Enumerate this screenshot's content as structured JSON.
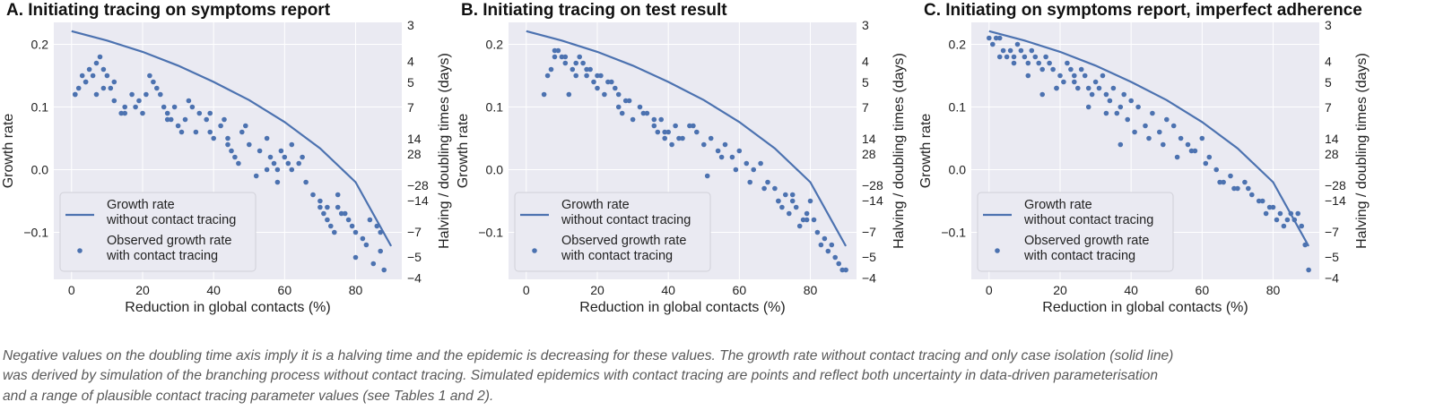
{
  "chart_data": [
    {
      "type": "scatter",
      "title": "A. Initiating tracing on symptoms report",
      "xlabel": "Reduction in global contacts (%)",
      "ylabel": "Growth rate",
      "y2label": "Halving / doubling times (days)",
      "xlim": [
        -5,
        93
      ],
      "ylim": [
        -0.175,
        0.235
      ],
      "xticks": [
        0,
        20,
        40,
        60,
        80
      ],
      "yticks": [
        -0.1,
        0.0,
        0.1,
        0.2
      ],
      "ytick_labels": [
        "−0.1",
        "0.0",
        "0.1",
        "0.2"
      ],
      "y2ticks": [
        {
          "label": "3",
          "r": 0.231
        },
        {
          "label": "4",
          "r": 0.173
        },
        {
          "label": "5",
          "r": 0.139
        },
        {
          "label": "7",
          "r": 0.099
        },
        {
          "label": "14",
          "r": 0.0495
        },
        {
          "label": "28",
          "r": 0.0248
        },
        {
          "label": "−28",
          "r": -0.0248
        },
        {
          "label": "−14",
          "r": -0.0495
        },
        {
          "label": "−7",
          "r": -0.099
        },
        {
          "label": "−5",
          "r": -0.139
        },
        {
          "label": "−4",
          "r": -0.173
        }
      ],
      "grid": true,
      "legend_position": "lower-left",
      "series": [
        {
          "name": "Growth rate\nwithout contact tracing",
          "kind": "line",
          "x": [
            0,
            10,
            20,
            30,
            40,
            50,
            60,
            70,
            80,
            90
          ],
          "y": [
            0.221,
            0.206,
            0.188,
            0.166,
            0.14,
            0.111,
            0.076,
            0.034,
            -0.02,
            -0.122
          ]
        },
        {
          "name": "Observed growth rate\nwith contact tracing",
          "kind": "scatter",
          "x": [
            1,
            2,
            3,
            4,
            5,
            6,
            7,
            8,
            9,
            10,
            11,
            12,
            14,
            15,
            17,
            19,
            20,
            22,
            24,
            25,
            26,
            27,
            28,
            30,
            31,
            32,
            34,
            36,
            38,
            39,
            40,
            42,
            43,
            44,
            45,
            46,
            47,
            48,
            50,
            53,
            55,
            56,
            57,
            58,
            59,
            60,
            61,
            62,
            64,
            66,
            68,
            70,
            71,
            72,
            73,
            74,
            75,
            76,
            78,
            79,
            80,
            82,
            84,
            86,
            87,
            88,
            1,
            4,
            7,
            9,
            12,
            15,
            18,
            21,
            23,
            27,
            29,
            33,
            35,
            39,
            44,
            49,
            52,
            55,
            58,
            62,
            65,
            70,
            72,
            75,
            77,
            80,
            83,
            85,
            87
          ],
          "y": [
            0.12,
            0.13,
            0.15,
            0.14,
            0.16,
            0.15,
            0.17,
            0.18,
            0.16,
            0.15,
            0.13,
            0.14,
            0.09,
            0.1,
            0.12,
            0.11,
            0.09,
            0.15,
            0.13,
            0.12,
            0.1,
            0.09,
            0.08,
            0.07,
            0.06,
            0.08,
            0.1,
            0.09,
            0.08,
            0.06,
            0.05,
            0.07,
            0.08,
            0.05,
            0.03,
            0.02,
            0.01,
            0.06,
            0.04,
            0.03,
            0.05,
            0.02,
            0.01,
            0.0,
            0.03,
            0.02,
            0.01,
            0.0,
            0.01,
            -0.02,
            -0.04,
            -0.06,
            -0.07,
            -0.08,
            -0.09,
            -0.1,
            -0.06,
            -0.07,
            -0.08,
            -0.09,
            -0.1,
            -0.11,
            -0.08,
            -0.09,
            -0.1,
            -0.16,
            0.12,
            0.14,
            0.12,
            0.13,
            0.11,
            0.09,
            0.1,
            0.12,
            0.14,
            0.08,
            0.1,
            0.11,
            0.06,
            0.09,
            0.04,
            0.07,
            -0.01,
            0.0,
            -0.02,
            0.04,
            0.02,
            -0.05,
            -0.06,
            -0.04,
            -0.07,
            -0.14,
            -0.12,
            -0.15,
            -0.13
          ]
        }
      ]
    },
    {
      "type": "scatter",
      "title": "B. Initiating tracing on test result",
      "xlabel": "Reduction in global contacts (%)",
      "ylabel": "Growth rate",
      "y2label": "Halving / doubling times (days)",
      "xlim": [
        -5,
        93
      ],
      "ylim": [
        -0.175,
        0.235
      ],
      "xticks": [
        0,
        20,
        40,
        60,
        80
      ],
      "yticks": [
        -0.1,
        0.0,
        0.1,
        0.2
      ],
      "ytick_labels": [
        "−0.1",
        "0.0",
        "0.1",
        "0.2"
      ],
      "y2ticks": [
        {
          "label": "3",
          "r": 0.231
        },
        {
          "label": "4",
          "r": 0.173
        },
        {
          "label": "5",
          "r": 0.139
        },
        {
          "label": "7",
          "r": 0.099
        },
        {
          "label": "14",
          "r": 0.0495
        },
        {
          "label": "28",
          "r": 0.0248
        },
        {
          "label": "−28",
          "r": -0.0248
        },
        {
          "label": "−14",
          "r": -0.0495
        },
        {
          "label": "−7",
          "r": -0.099
        },
        {
          "label": "−5",
          "r": -0.139
        },
        {
          "label": "−4",
          "r": -0.173
        }
      ],
      "grid": true,
      "legend_position": "lower-left",
      "series": [
        {
          "name": "Growth rate\nwithout contact tracing",
          "kind": "line",
          "x": [
            0,
            10,
            20,
            30,
            40,
            50,
            60,
            70,
            80,
            90
          ],
          "y": [
            0.221,
            0.206,
            0.188,
            0.166,
            0.14,
            0.111,
            0.076,
            0.034,
            -0.02,
            -0.122
          ]
        },
        {
          "name": "Observed growth rate\nwith contact tracing",
          "kind": "scatter",
          "x": [
            5,
            6,
            7,
            8,
            9,
            10,
            11,
            12,
            13,
            14,
            15,
            16,
            17,
            18,
            19,
            20,
            21,
            22,
            24,
            25,
            26,
            27,
            28,
            30,
            32,
            34,
            36,
            37,
            38,
            39,
            40,
            41,
            42,
            44,
            46,
            48,
            50,
            52,
            54,
            56,
            58,
            60,
            62,
            64,
            66,
            68,
            70,
            71,
            72,
            73,
            74,
            75,
            76,
            77,
            78,
            79,
            80,
            81,
            82,
            83,
            84,
            85,
            86,
            87,
            88,
            89,
            90,
            8,
            11,
            14,
            17,
            20,
            23,
            26,
            29,
            33,
            36,
            39,
            43,
            47,
            51,
            55,
            59,
            63,
            67,
            71,
            75,
            79
          ],
          "y": [
            0.12,
            0.15,
            0.16,
            0.18,
            0.19,
            0.18,
            0.17,
            0.12,
            0.16,
            0.17,
            0.18,
            0.17,
            0.15,
            0.16,
            0.14,
            0.13,
            0.15,
            0.12,
            0.14,
            0.13,
            0.1,
            0.09,
            0.11,
            0.08,
            0.1,
            0.09,
            0.07,
            0.06,
            0.08,
            0.05,
            0.06,
            0.04,
            0.07,
            0.05,
            0.07,
            0.06,
            0.04,
            0.05,
            0.03,
            0.04,
            0.02,
            0.03,
            0.01,
            0.0,
            0.01,
            -0.02,
            -0.03,
            -0.05,
            -0.06,
            -0.04,
            -0.07,
            -0.05,
            -0.06,
            -0.09,
            -0.08,
            -0.07,
            -0.05,
            -0.08,
            -0.1,
            -0.12,
            -0.11,
            -0.13,
            -0.12,
            -0.14,
            -0.15,
            -0.16,
            -0.16,
            0.19,
            0.18,
            0.15,
            0.16,
            0.15,
            0.14,
            0.12,
            0.11,
            0.09,
            0.08,
            0.06,
            0.05,
            0.07,
            -0.01,
            0.02,
            0.0,
            -0.02,
            -0.03,
            -0.05,
            -0.04,
            -0.08
          ]
        }
      ]
    },
    {
      "type": "scatter",
      "title": "C. Initiating on symptoms report, imperfect adherence",
      "xlabel": "Reduction in global contacts (%)",
      "ylabel": "Growth rate",
      "y2label": "Halving / doubling times (days)",
      "xlim": [
        -5,
        93
      ],
      "ylim": [
        -0.175,
        0.235
      ],
      "xticks": [
        0,
        20,
        40,
        60,
        80
      ],
      "yticks": [
        -0.1,
        0.0,
        0.1,
        0.2
      ],
      "ytick_labels": [
        "−0.1",
        "0.0",
        "0.1",
        "0.2"
      ],
      "y2ticks": [
        {
          "label": "3",
          "r": 0.231
        },
        {
          "label": "4",
          "r": 0.173
        },
        {
          "label": "5",
          "r": 0.139
        },
        {
          "label": "7",
          "r": 0.099
        },
        {
          "label": "14",
          "r": 0.0495
        },
        {
          "label": "28",
          "r": 0.0248
        },
        {
          "label": "−28",
          "r": -0.0248
        },
        {
          "label": "−14",
          "r": -0.0495
        },
        {
          "label": "−7",
          "r": -0.099
        },
        {
          "label": "−5",
          "r": -0.139
        },
        {
          "label": "−4",
          "r": -0.173
        }
      ],
      "grid": true,
      "legend_position": "lower-left",
      "series": [
        {
          "name": "Growth rate\nwithout contact tracing",
          "kind": "line",
          "x": [
            0,
            10,
            20,
            30,
            40,
            50,
            60,
            70,
            80,
            90
          ],
          "y": [
            0.221,
            0.206,
            0.188,
            0.166,
            0.14,
            0.111,
            0.076,
            0.034,
            -0.02,
            -0.122
          ]
        },
        {
          "name": "Observed growth rate\nwith contact tracing",
          "kind": "scatter",
          "x": [
            0,
            1,
            2,
            3,
            4,
            5,
            6,
            7,
            8,
            9,
            10,
            11,
            12,
            13,
            14,
            15,
            16,
            17,
            18,
            19,
            20,
            21,
            22,
            23,
            24,
            25,
            26,
            27,
            28,
            29,
            30,
            31,
            32,
            33,
            34,
            35,
            36,
            37,
            38,
            39,
            40,
            42,
            44,
            46,
            48,
            50,
            52,
            54,
            56,
            58,
            60,
            62,
            64,
            66,
            68,
            70,
            72,
            74,
            76,
            78,
            80,
            81,
            82,
            83,
            84,
            85,
            86,
            87,
            88,
            89,
            90,
            3,
            7,
            11,
            15,
            19,
            24,
            28,
            33,
            37,
            41,
            45,
            49,
            53,
            57,
            61,
            65,
            69,
            73,
            77,
            79
          ],
          "y": [
            0.21,
            0.2,
            0.21,
            0.21,
            0.19,
            0.18,
            0.19,
            0.18,
            0.2,
            0.19,
            0.18,
            0.17,
            0.19,
            0.18,
            0.17,
            0.16,
            0.18,
            0.17,
            0.16,
            0.13,
            0.15,
            0.14,
            0.17,
            0.16,
            0.14,
            0.13,
            0.16,
            0.15,
            0.13,
            0.12,
            0.14,
            0.13,
            0.15,
            0.12,
            0.11,
            0.13,
            0.09,
            0.1,
            0.12,
            0.08,
            0.11,
            0.1,
            0.07,
            0.09,
            0.06,
            0.08,
            0.07,
            0.05,
            0.04,
            0.03,
            0.05,
            0.02,
            0.0,
            -0.02,
            -0.01,
            -0.03,
            -0.02,
            -0.04,
            -0.05,
            -0.07,
            -0.06,
            -0.08,
            -0.07,
            -0.09,
            -0.08,
            -0.07,
            -0.08,
            -0.07,
            -0.09,
            -0.12,
            -0.16,
            0.18,
            0.17,
            0.15,
            0.12,
            0.13,
            0.15,
            0.1,
            0.09,
            0.04,
            0.06,
            0.05,
            0.04,
            0.02,
            0.03,
            0.01,
            -0.02,
            -0.03,
            -0.03,
            -0.05,
            -0.06
          ]
        }
      ]
    }
  ],
  "caption": "Negative values on the doubling time axis imply it is a halving time and the epidemic is decreasing for these values. The growth rate without contact tracing and only case isolation (solid line)\nwas derived by simulation of the branching process without contact tracing. Simulated epidemics with contact tracing are points and reflect both uncertainty in data-driven parameterisation\nand a range of plausible contact tracing parameter values (see Tables 1 and 2).",
  "colors": {
    "panel_background": "#eaeaf2",
    "grid": "#ffffff",
    "series": "#4c72b0",
    "legend_background": "#eaeaf2"
  }
}
